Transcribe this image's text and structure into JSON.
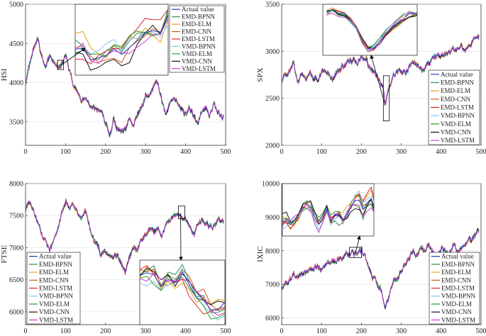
{
  "legend_labels": [
    "Actual value",
    "EMD-BPNN",
    "EMD-ELM",
    "EMD-CNN",
    "EMD-LSTM",
    "VMD-BPNN",
    "VMD-ELM",
    "VMD-CNN",
    "VMD-LSTM"
  ],
  "series_colors": [
    "#1f3fbf",
    "#2e8b57",
    "#e8a020",
    "#c85a14",
    "#d62728",
    "#7fc8f0",
    "#2ca02c",
    "#111111",
    "#d13cd1"
  ],
  "chart_data": [
    {
      "type": "line",
      "ylabel": "HSI",
      "xlim": [
        0,
        500
      ],
      "ylim": [
        3200,
        5000
      ],
      "xticks": [
        0,
        100,
        200,
        300,
        400,
        500
      ],
      "yticks": [
        3500,
        4000,
        4500,
        5000
      ],
      "legend": "top-right",
      "inset": "top-center, zooms x 80-95",
      "actual": {
        "x": [
          0,
          10,
          20,
          30,
          40,
          50,
          60,
          70,
          80,
          90,
          100,
          110,
          120,
          130,
          140,
          150,
          160,
          170,
          180,
          190,
          200,
          210,
          220,
          230,
          240,
          250,
          260,
          270,
          280,
          290,
          300,
          310,
          320,
          330,
          340,
          350,
          360,
          370,
          380,
          390,
          400,
          410,
          420,
          430,
          440,
          450,
          460,
          470,
          480,
          490
        ],
        "y": [
          4000,
          4230,
          4420,
          4560,
          4300,
          4210,
          4380,
          4250,
          4180,
          4230,
          4350,
          4150,
          3950,
          3900,
          3780,
          3820,
          3710,
          3680,
          3630,
          3600,
          3480,
          3330,
          3520,
          3430,
          3380,
          3420,
          3590,
          3470,
          3580,
          3680,
          3820,
          3860,
          3970,
          4010,
          3780,
          3600,
          3730,
          3820,
          3750,
          3650,
          3580,
          3690,
          3560,
          3500,
          3620,
          3680,
          3590,
          3700,
          3630,
          3560
        ]
      }
    },
    {
      "type": "line",
      "ylabel": "SPX",
      "xlim": [
        0,
        500
      ],
      "ylim": [
        2000,
        3500
      ],
      "xticks": [
        0,
        100,
        200,
        300,
        400,
        500
      ],
      "yticks": [
        2000,
        2500,
        3000,
        3500
      ],
      "legend": "bottom-right",
      "inset": "top-center, zooms x 250-270",
      "actual": {
        "x": [
          0,
          10,
          20,
          30,
          40,
          50,
          60,
          70,
          80,
          90,
          100,
          110,
          120,
          130,
          140,
          150,
          160,
          170,
          180,
          190,
          200,
          210,
          220,
          230,
          240,
          250,
          255,
          260,
          265,
          270,
          280,
          290,
          300,
          310,
          320,
          330,
          340,
          350,
          360,
          370,
          380,
          390,
          400,
          410,
          420,
          430,
          440,
          450,
          460,
          470,
          480,
          490
        ],
        "y": [
          2690,
          2730,
          2790,
          2850,
          2700,
          2760,
          2720,
          2780,
          2730,
          2690,
          2780,
          2800,
          2760,
          2730,
          2790,
          2830,
          2860,
          2880,
          2900,
          2870,
          2930,
          2900,
          2840,
          2790,
          2720,
          2650,
          2600,
          2420,
          2550,
          2640,
          2720,
          2790,
          2810,
          2760,
          2830,
          2880,
          2860,
          2790,
          2840,
          2880,
          2920,
          2950,
          2960,
          2940,
          2970,
          3000,
          3020,
          3040,
          3010,
          3070,
          3110,
          3140
        ]
      }
    },
    {
      "type": "line",
      "ylabel": "FTSE",
      "xlim": [
        0,
        500
      ],
      "ylim": [
        5800,
        8000
      ],
      "xticks": [
        0,
        100,
        200,
        300,
        400,
        500
      ],
      "yticks": [
        6000,
        6500,
        7000,
        7500,
        8000
      ],
      "legend": "bottom-left",
      "inset": "bottom-right, zooms x 380-395",
      "actual": {
        "x": [
          0,
          10,
          20,
          30,
          40,
          50,
          60,
          70,
          80,
          90,
          100,
          110,
          120,
          130,
          140,
          150,
          160,
          170,
          180,
          190,
          200,
          210,
          220,
          230,
          240,
          250,
          260,
          270,
          280,
          290,
          300,
          310,
          320,
          330,
          340,
          350,
          360,
          370,
          380,
          390,
          400,
          410,
          420,
          430,
          440,
          450,
          460,
          470,
          480,
          490
        ],
        "y": [
          7600,
          7700,
          7550,
          7400,
          7250,
          7100,
          6950,
          7050,
          7300,
          7500,
          7750,
          7600,
          7650,
          7550,
          7500,
          7600,
          7300,
          7100,
          7050,
          6900,
          6950,
          6850,
          6800,
          6900,
          6750,
          6600,
          6900,
          7000,
          6950,
          7100,
          7200,
          7300,
          7250,
          7300,
          7200,
          7350,
          7400,
          7500,
          7550,
          7500,
          7450,
          7300,
          7200,
          7350,
          7450,
          7400,
          7300,
          7350,
          7450,
          7400
        ]
      }
    },
    {
      "type": "line",
      "ylabel": "IXIC",
      "xlim": [
        0,
        500
      ],
      "ylim": [
        5800,
        10000
      ],
      "xticks": [
        0,
        100,
        200,
        300,
        400,
        500
      ],
      "yticks": [
        6000,
        7000,
        8000,
        9000,
        10000
      ],
      "legend": "bottom-right",
      "inset": "top-left, zooms x 170-200",
      "actual": {
        "x": [
          0,
          10,
          20,
          30,
          40,
          50,
          60,
          70,
          80,
          90,
          100,
          110,
          120,
          130,
          140,
          150,
          160,
          170,
          180,
          190,
          200,
          210,
          220,
          230,
          240,
          250,
          260,
          270,
          280,
          290,
          300,
          310,
          320,
          330,
          340,
          350,
          360,
          370,
          380,
          390,
          400,
          410,
          420,
          430,
          440,
          450,
          460,
          470,
          480,
          490
        ],
        "y": [
          6900,
          7000,
          7100,
          7300,
          7200,
          7400,
          7350,
          7500,
          7450,
          7550,
          7400,
          7550,
          7700,
          7650,
          7750,
          7800,
          7850,
          7900,
          7950,
          7900,
          8000,
          7800,
          7500,
          7200,
          7000,
          6800,
          6300,
          6700,
          7000,
          7200,
          7400,
          7600,
          7800,
          8000,
          7800,
          8100,
          8000,
          8200,
          7900,
          7800,
          8100,
          8000,
          7900,
          8200,
          8000,
          8100,
          8200,
          8300,
          8400,
          8550
        ]
      }
    }
  ]
}
